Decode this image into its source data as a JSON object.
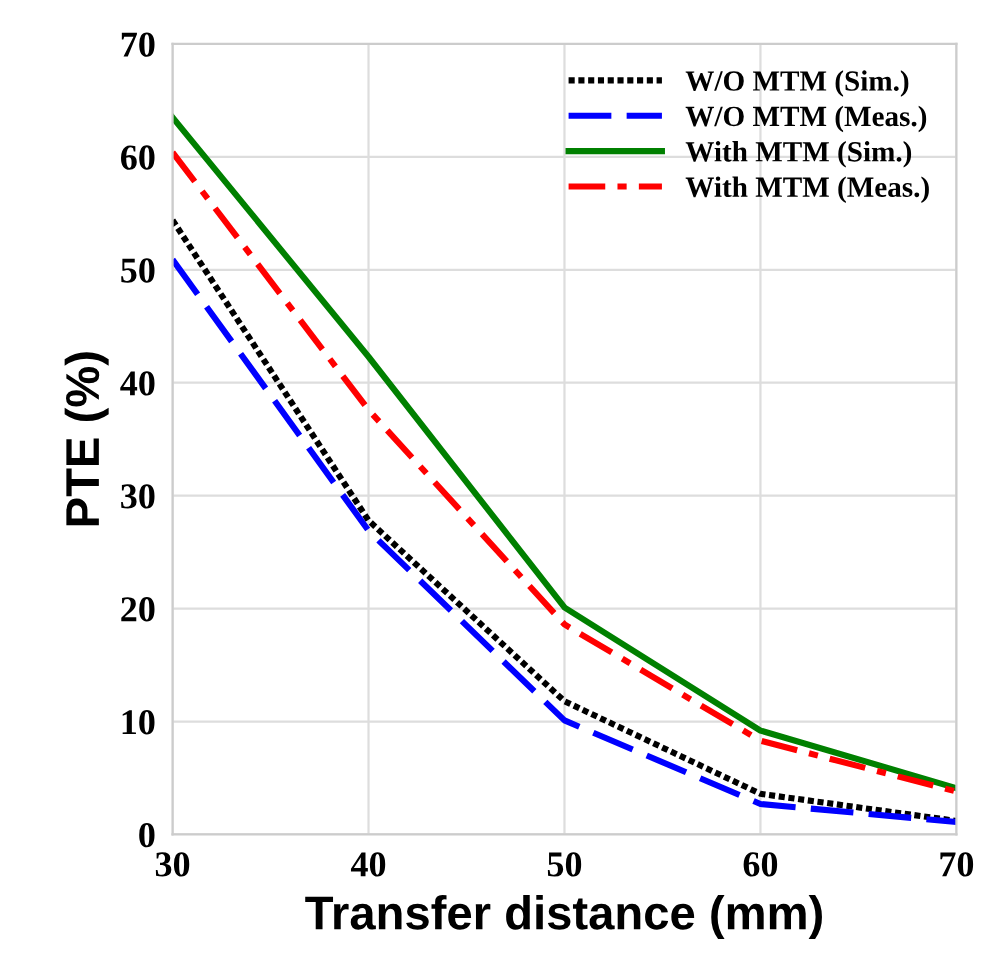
{
  "chart_data": {
    "type": "line",
    "xlabel": "Transfer distance (mm)",
    "ylabel": "PTE (%)",
    "x": [
      30,
      40,
      50,
      60,
      70
    ],
    "series": [
      {
        "name": "W/O MTM (Sim.)",
        "color": "#000000",
        "line_style": "dotted",
        "values": [
          54.4,
          27.8,
          11.8,
          3.6,
          1.2
        ]
      },
      {
        "name": "W/O MTM (Meas.)",
        "color": "#0000ff",
        "line_style": "dashed",
        "values": [
          50.9,
          26.9,
          10.1,
          2.7,
          1.1
        ]
      },
      {
        "name": "With MTM (Sim.)",
        "color": "#008000",
        "line_style": "solid",
        "values": [
          63.5,
          42.3,
          20.1,
          9.2,
          4.1
        ]
      },
      {
        "name": "With MTM (Meas.)",
        "color": "#ff0000",
        "line_style": "dashdot",
        "values": [
          60.4,
          37.6,
          18.6,
          8.3,
          3.8
        ]
      }
    ],
    "xlim": [
      30,
      70
    ],
    "ylim": [
      0,
      70
    ],
    "xticks": [
      30,
      40,
      50,
      60,
      70
    ],
    "yticks": [
      0,
      10,
      20,
      30,
      40,
      50,
      60,
      70
    ],
    "grid": true,
    "legend": "top right",
    "marker": "none"
  }
}
